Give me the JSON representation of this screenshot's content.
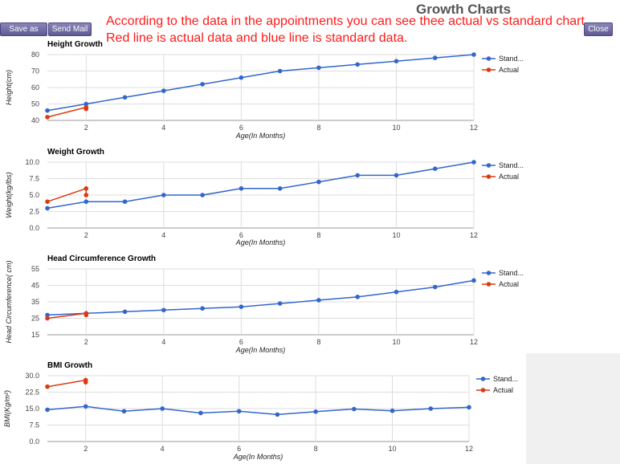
{
  "toolbar": {
    "save_pdf_label": "Save as PDF",
    "send_mail_label": "Send Mail",
    "close_label": "Close"
  },
  "page_title": "Growth Charts",
  "notes": {
    "line1": "According to the data in the appointments you can see thee actual vs standard chart.",
    "line2": "Red line is actual data and blue line is standard data."
  },
  "colors": {
    "standard": "#3366cc",
    "actual": "#dc3912",
    "grid": "#cccccc"
  },
  "chart_data": [
    {
      "type": "line",
      "title": "Height Growth",
      "xlabel": "Age(In Months)",
      "ylabel": "Height(cm)",
      "xlim": [
        1,
        12
      ],
      "ylim": [
        40,
        80
      ],
      "xticks": [
        2,
        4,
        6,
        8,
        10,
        12
      ],
      "yticks": [
        "40",
        "50",
        "60",
        "70",
        "80"
      ],
      "ytick_values": [
        40,
        50,
        60,
        70,
        80
      ],
      "legend_position": "right",
      "series": [
        {
          "name": "Stand...",
          "color": "#3366cc",
          "x": [
            1,
            2,
            3,
            4,
            5,
            6,
            7,
            8,
            9,
            10,
            11,
            12
          ],
          "y": [
            46,
            50,
            54,
            58,
            62,
            66,
            70,
            72,
            74,
            76,
            78,
            80
          ]
        },
        {
          "name": "Actual",
          "color": "#dc3912",
          "x": [
            1,
            2,
            2
          ],
          "y": [
            42,
            48,
            47
          ]
        }
      ]
    },
    {
      "type": "line",
      "title": "Weight Growth",
      "xlabel": "Age(In Months)",
      "ylabel": "Weight(kg/lbs)",
      "xlim": [
        1,
        12
      ],
      "ylim": [
        0,
        10
      ],
      "xticks": [
        2,
        4,
        6,
        8,
        10,
        12
      ],
      "yticks": [
        "0.0",
        "2.5",
        "5.0",
        "7.5",
        "10.0"
      ],
      "ytick_values": [
        0,
        2.5,
        5,
        7.5,
        10
      ],
      "legend_position": "right",
      "series": [
        {
          "name": "Stand...",
          "color": "#3366cc",
          "x": [
            1,
            2,
            3,
            4,
            5,
            6,
            7,
            8,
            9,
            10,
            11,
            12
          ],
          "y": [
            3,
            4,
            4,
            5,
            5,
            6,
            6,
            7,
            8,
            8,
            9,
            10
          ]
        },
        {
          "name": "Actual",
          "color": "#dc3912",
          "x": [
            1,
            2,
            2
          ],
          "y": [
            4,
            6,
            5
          ]
        }
      ]
    },
    {
      "type": "line",
      "title": "Head Circumference Growth",
      "xlabel": "Age(In Months)",
      "ylabel": "Head Circumference( cm)",
      "xlim": [
        1,
        12
      ],
      "ylim": [
        15,
        55
      ],
      "xticks": [
        2,
        4,
        6,
        8,
        10,
        12
      ],
      "yticks": [
        "15",
        "25",
        "35",
        "45",
        "55"
      ],
      "ytick_values": [
        15,
        25,
        35,
        45,
        55
      ],
      "legend_position": "right",
      "series": [
        {
          "name": "Stand...",
          "color": "#3366cc",
          "x": [
            1,
            2,
            3,
            4,
            5,
            6,
            7,
            8,
            9,
            10,
            11,
            12
          ],
          "y": [
            27,
            28,
            29,
            30,
            31,
            32,
            34,
            36,
            38,
            41,
            44,
            48
          ]
        },
        {
          "name": "Actual",
          "color": "#dc3912",
          "x": [
            1,
            2,
            2
          ],
          "y": [
            25,
            28,
            27
          ]
        }
      ]
    },
    {
      "type": "line",
      "title": "BMI Growth",
      "xlabel": "Age(In Months)",
      "ylabel": "BMI(Kg/m²)",
      "xlim": [
        1,
        12
      ],
      "ylim": [
        0,
        30
      ],
      "xticks": [
        2,
        4,
        6,
        8,
        10,
        12
      ],
      "yticks": [
        "0.0",
        "7.5",
        "15.0",
        "22.5",
        "30.0"
      ],
      "ytick_values": [
        0,
        7.5,
        15,
        22.5,
        30
      ],
      "legend_position": "right",
      "series": [
        {
          "name": "Stand...",
          "color": "#3366cc",
          "x": [
            1,
            2,
            3,
            4,
            5,
            6,
            7,
            8,
            9,
            10,
            11,
            12
          ],
          "y": [
            14.5,
            16,
            13.8,
            15,
            13,
            13.8,
            12.3,
            13.6,
            14.8,
            14,
            15,
            15.6
          ]
        },
        {
          "name": "Actual",
          "color": "#dc3912",
          "x": [
            1,
            2,
            2
          ],
          "y": [
            25,
            28,
            27
          ]
        }
      ]
    }
  ]
}
